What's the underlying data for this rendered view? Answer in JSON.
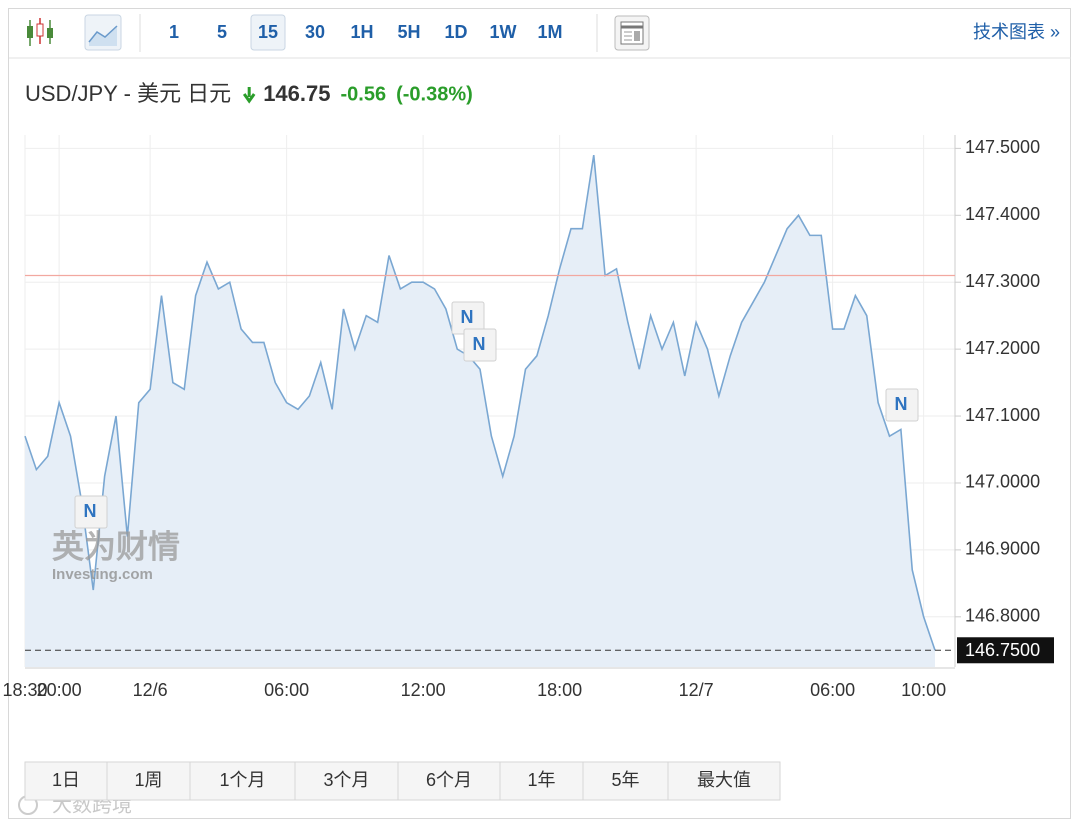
{
  "toolbar": {
    "intervals": [
      {
        "label": "1",
        "selected": false
      },
      {
        "label": "5",
        "selected": false
      },
      {
        "label": "15",
        "selected": true
      },
      {
        "label": "30",
        "selected": false
      },
      {
        "label": "1H",
        "selected": false
      },
      {
        "label": "5H",
        "selected": false
      },
      {
        "label": "1D",
        "selected": false
      },
      {
        "label": "1W",
        "selected": false
      },
      {
        "label": "1M",
        "selected": false
      }
    ],
    "technical_link": "技术图表 »"
  },
  "header": {
    "pair": "USD/JPY - 美元 日元",
    "price": "146.75",
    "change": "-0.56",
    "change_pct": "(-0.38%)"
  },
  "chart_data": {
    "type": "line",
    "color": "#7aa7d2",
    "area_color": "#e6eef7",
    "categories": [
      "18:30",
      null,
      null,
      "20:00",
      null,
      null,
      null,
      null,
      null,
      null,
      null,
      "12/6",
      null,
      null,
      null,
      null,
      null,
      null,
      null,
      null,
      null,
      null,
      null,
      "06:00",
      null,
      null,
      null,
      null,
      null,
      null,
      null,
      null,
      null,
      null,
      null,
      "12:00",
      null,
      null,
      null,
      null,
      null,
      null,
      null,
      null,
      null,
      null,
      null,
      "18:00",
      null,
      null,
      null,
      null,
      null,
      null,
      null,
      null,
      null,
      null,
      null,
      "12/7",
      null,
      null,
      null,
      null,
      null,
      null,
      null,
      null,
      null,
      null,
      null,
      "06:00",
      null,
      null,
      null,
      null,
      null,
      null,
      null,
      "10:00",
      null
    ],
    "values": [
      147.07,
      147.02,
      147.04,
      147.12,
      147.07,
      146.97,
      146.84,
      147.01,
      147.1,
      146.92,
      147.12,
      147.14,
      147.28,
      147.15,
      147.14,
      147.28,
      147.33,
      147.29,
      147.3,
      147.23,
      147.21,
      147.21,
      147.15,
      147.12,
      147.11,
      147.13,
      147.18,
      147.11,
      147.26,
      147.2,
      147.25,
      147.24,
      147.34,
      147.29,
      147.3,
      147.3,
      147.29,
      147.26,
      147.2,
      147.19,
      147.17,
      147.07,
      147.01,
      147.07,
      147.17,
      147.19,
      147.25,
      147.32,
      147.38,
      147.38,
      147.49,
      147.31,
      147.32,
      147.24,
      147.17,
      147.25,
      147.2,
      147.24,
      147.16,
      147.24,
      147.2,
      147.13,
      147.19,
      147.24,
      147.27,
      147.3,
      147.34,
      147.38,
      147.4,
      147.37,
      147.37,
      147.23,
      147.23,
      147.28,
      147.25,
      147.12,
      147.07,
      147.08,
      146.87,
      146.8,
      146.75
    ],
    "ylim": [
      146.725,
      147.52
    ],
    "yticks": [
      {
        "value": 146.8,
        "label": "146.8000"
      },
      {
        "value": 146.9,
        "label": "146.9000"
      },
      {
        "value": 147.0,
        "label": "147.0000"
      },
      {
        "value": 147.1,
        "label": "147.1000"
      },
      {
        "value": 147.2,
        "label": "147.2000"
      },
      {
        "value": 147.3,
        "label": "147.3000"
      },
      {
        "value": 147.4,
        "label": "147.4000"
      },
      {
        "value": 147.5,
        "label": "147.5000"
      }
    ],
    "reference_line": {
      "value": 147.31,
      "color": "#f2a8a0"
    },
    "last_price": {
      "value": 146.75,
      "label": "146.7500"
    },
    "news_markers": [
      "N",
      "N",
      "N",
      "N"
    ],
    "grid": true
  },
  "watermark": {
    "brand": "英为财情",
    "site": "Investing.com",
    "source": "大数跨境"
  },
  "ranges": [
    "1日",
    "1周",
    "1个月",
    "3个月",
    "6个月",
    "1年",
    "5年",
    "最大值"
  ]
}
